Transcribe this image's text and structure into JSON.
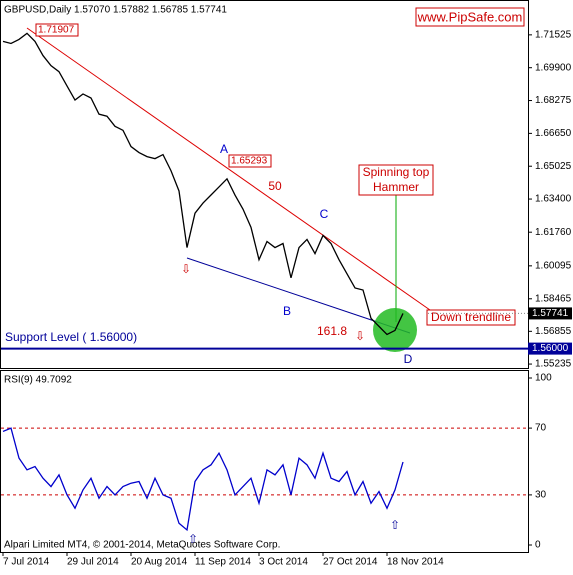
{
  "chart_data": [
    {
      "type": "line",
      "title": "GBPUSD,Daily  1.57070 1.57882 1.56785 1.57741",
      "color": "#000000",
      "categories": [
        "7 Jul 2014",
        null,
        null,
        null,
        null,
        null,
        null,
        null,
        "29 Jul 2014",
        null,
        null,
        null,
        null,
        null,
        null,
        null,
        "20 Aug 2014",
        null,
        null,
        null,
        null,
        null,
        null,
        null,
        "11 Sep 2014",
        null,
        null,
        null,
        null,
        null,
        null,
        null,
        "3 Oct 2014",
        null,
        null,
        null,
        null,
        null,
        null,
        null,
        "27 Oct 2014",
        null,
        null,
        null,
        null,
        null,
        null,
        null,
        "18 Nov 2014",
        null,
        null
      ],
      "values": [
        1.712,
        1.711,
        1.713,
        1.716,
        1.712,
        1.705,
        1.7,
        1.697,
        1.69,
        1.683,
        1.686,
        1.684,
        1.676,
        1.675,
        1.67,
        1.668,
        1.66,
        1.657,
        1.655,
        1.654,
        1.656,
        1.648,
        1.638,
        1.61,
        1.627,
        1.632,
        1.636,
        1.64,
        1.644,
        1.636,
        1.629,
        1.62,
        1.604,
        1.613,
        1.61,
        1.612,
        1.595,
        1.61,
        1.614,
        1.607,
        1.616,
        1.612,
        1.604,
        1.597,
        1.59,
        1.589,
        1.575,
        1.571,
        1.567,
        1.569,
        1.57741
      ],
      "ylim": [
        1.5504,
        1.7325
      ],
      "yticks": [
        1.71525,
        {
          "value": 1.699,
          "label": "1.69900"
        },
        1.68275,
        {
          "value": 1.6665,
          "label": "1.66650"
        },
        1.65025,
        {
          "value": 1.634,
          "label": "1.63400"
        },
        {
          "value": 1.6176,
          "label": "1.61760"
        },
        1.60095,
        1.58465,
        1.56855,
        1.55235
      ],
      "last_price": {
        "value": 1.57741,
        "label": "1.57741"
      },
      "support_level": {
        "value": 1.56,
        "label": "1.56000"
      },
      "annotations": {
        "site": "www.PipSafe.com",
        "high": "1.71907",
        "a_price": "1.65293",
        "a": "A",
        "b": "B",
        "c": "C",
        "d": "D",
        "fib50": "50",
        "fib161": "161.8",
        "pattern1": "Spinning top",
        "pattern2": "Hammer",
        "trendline": "Down trendline",
        "support": "Support Level ( 1.56000)"
      },
      "footer": "Alpari Limited MT4, © 2001-2014, MetaQuotes Software Corp."
    },
    {
      "type": "line",
      "title": "RSI(9) 49.7092",
      "color": "#0000cc",
      "values": [
        68,
        70,
        52,
        45,
        47,
        40,
        35,
        42,
        30,
        22,
        33,
        40,
        28,
        35,
        30,
        35,
        37,
        38,
        28,
        40,
        30,
        28,
        13,
        9,
        38,
        45,
        48,
        55,
        45,
        30,
        35,
        40,
        25,
        45,
        42,
        48,
        30,
        52,
        48,
        40,
        55,
        40,
        38,
        44,
        30,
        38,
        25,
        32,
        22,
        33,
        49.7
      ],
      "ylim": [
        -4.2,
        104.2
      ],
      "yticks": [
        0,
        30,
        70,
        100
      ],
      "levels": [
        30,
        70
      ],
      "level_color": "#cc0000"
    }
  ]
}
